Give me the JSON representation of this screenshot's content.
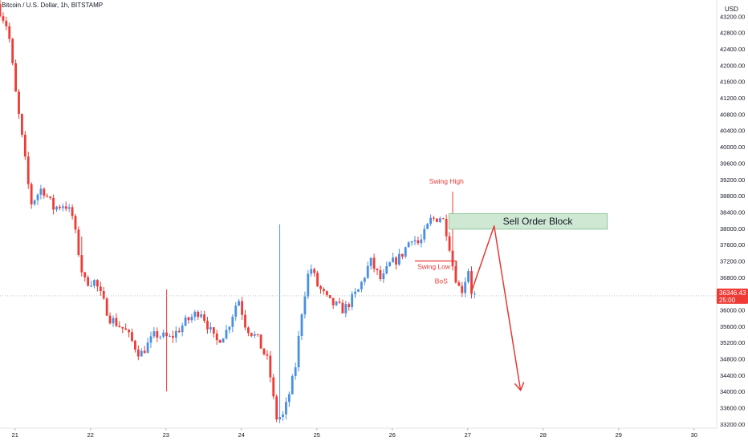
{
  "header": {
    "symbol_title": "Bitcoin / U.S. Dollar, 1h, BITSTAMP",
    "currency": "USD"
  },
  "colors": {
    "up": "#4a90e2",
    "down": "#ef3b36",
    "annotation": "#e53935",
    "order_block_fill": "#cfe8d4",
    "order_block_border": "#7fbf8a"
  },
  "current_price": {
    "value": 36346.43,
    "label": "36346.43",
    "countdown": "25:00"
  },
  "chart_data": {
    "type": "candlestick",
    "title": "Bitcoin / U.S. Dollar, 1h, BITSTAMP",
    "xlabel": "",
    "ylabel": "USD",
    "x_ticks": [
      21,
      22,
      23,
      24,
      25,
      26,
      27,
      28,
      29,
      30
    ],
    "x_range": [
      20.8,
      30.3
    ],
    "y_ticks": [
      33200,
      33600,
      34000,
      34400,
      34800,
      35200,
      35600,
      36000,
      36400,
      36800,
      37200,
      37600,
      38000,
      38400,
      38800,
      39200,
      39600,
      40000,
      40400,
      40800,
      41200,
      41600,
      42000,
      42400,
      42800,
      43200
    ],
    "y_tick_labels": [
      "33200.00",
      "33600.00",
      "34000.00",
      "34400.00",
      "34800.00",
      "35200.00",
      "35600.00",
      "36000.00",
      "",
      "36800.00",
      "37200.00",
      "37600.00",
      "38000.00",
      "38400.00",
      "38800.00",
      "39200.00",
      "39600.00",
      "40000.00",
      "40400.00",
      "40800.00",
      "41200.00",
      "41600.00",
      "42000.00",
      "42400.00",
      "42800.00",
      "43200.00"
    ],
    "ylim": [
      33100,
      43600
    ],
    "grid": false,
    "segments": [
      {
        "t": 20.8,
        "p": 43500
      },
      {
        "t": 20.95,
        "p": 42900
      },
      {
        "t": 21.05,
        "p": 41300
      },
      {
        "t": 21.15,
        "p": 40000
      },
      {
        "t": 21.25,
        "p": 38600
      },
      {
        "t": 21.4,
        "p": 39000
      },
      {
        "t": 21.55,
        "p": 38500
      },
      {
        "t": 21.7,
        "p": 38600
      },
      {
        "t": 21.8,
        "p": 38300
      },
      {
        "t": 21.95,
        "p": 36700
      },
      {
        "t": 22.1,
        "p": 36700
      },
      {
        "t": 22.3,
        "p": 35800
      },
      {
        "t": 22.5,
        "p": 35500
      },
      {
        "t": 22.7,
        "p": 34900
      },
      {
        "t": 22.9,
        "p": 35400
      },
      {
        "t": 23.1,
        "p": 35300
      },
      {
        "t": 23.3,
        "p": 35700
      },
      {
        "t": 23.5,
        "p": 36000
      },
      {
        "t": 23.7,
        "p": 35200
      },
      {
        "t": 23.85,
        "p": 35500
      },
      {
        "t": 24.0,
        "p": 36300
      },
      {
        "t": 24.1,
        "p": 35600
      },
      {
        "t": 24.25,
        "p": 35300
      },
      {
        "t": 24.4,
        "p": 34700
      },
      {
        "t": 24.5,
        "p": 33350
      },
      {
        "t": 24.6,
        "p": 33400
      },
      {
        "t": 24.75,
        "p": 34500
      },
      {
        "t": 24.85,
        "p": 36100
      },
      {
        "t": 24.95,
        "p": 37100
      },
      {
        "t": 25.05,
        "p": 36600
      },
      {
        "t": 25.2,
        "p": 36200
      },
      {
        "t": 25.4,
        "p": 36000
      },
      {
        "t": 25.6,
        "p": 36500
      },
      {
        "t": 25.75,
        "p": 37200
      },
      {
        "t": 25.9,
        "p": 36700
      },
      {
        "t": 26.0,
        "p": 37100
      },
      {
        "t": 26.15,
        "p": 37300
      },
      {
        "t": 26.3,
        "p": 37800
      },
      {
        "t": 26.4,
        "p": 37600
      },
      {
        "t": 26.55,
        "p": 38200
      },
      {
        "t": 26.7,
        "p": 38300
      },
      {
        "t": 26.78,
        "p": 37800
      },
      {
        "t": 26.85,
        "p": 37000
      },
      {
        "t": 26.95,
        "p": 36400
      },
      {
        "t": 27.05,
        "p": 37000
      },
      {
        "t": 27.1,
        "p": 36350
      }
    ],
    "spikes": [
      {
        "t": 24.5,
        "high": 38100,
        "low": 34300
      },
      {
        "t": 26.8,
        "high": 38900,
        "low": 37600
      },
      {
        "t": 23.0,
        "high": 36500,
        "low": 34000
      },
      {
        "t": 21.9,
        "high": 37800,
        "low": 36900
      }
    ],
    "annotations": {
      "swing_high": {
        "label": "Swing High",
        "t": 26.75,
        "price": 39100
      },
      "swing_low": {
        "label": "Swing Low",
        "t": 26.55,
        "price": 37000,
        "line_from_t": 26.3,
        "line_to_t": 26.85,
        "line_price": 37200
      },
      "bos": {
        "label": "BoS",
        "t": 26.5,
        "price": 36650
      },
      "order_block": {
        "label": "Sell Order Block",
        "t_start": 26.75,
        "t_end": 28.85,
        "price_low": 37980,
        "price_high": 38360
      },
      "projection": [
        {
          "t": 27.05,
          "p": 36450
        },
        {
          "t": 27.35,
          "p": 38060
        },
        {
          "t": 27.7,
          "p": 34030
        }
      ]
    }
  }
}
